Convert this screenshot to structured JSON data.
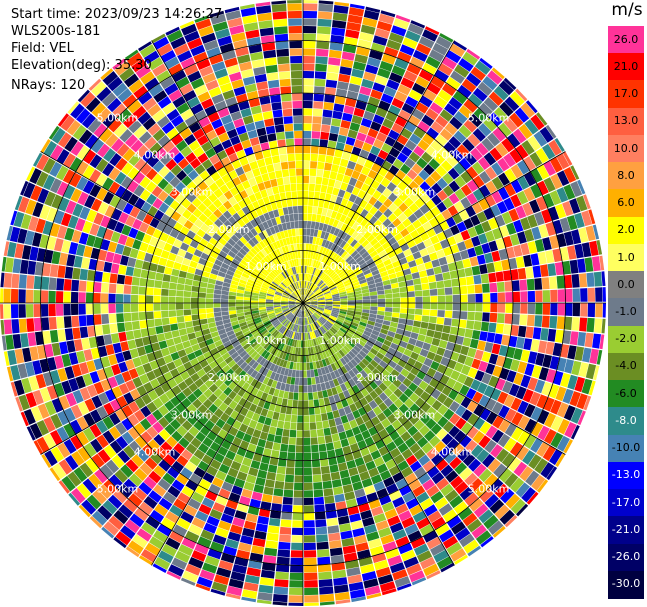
{
  "header": {
    "start_time": "Start time: 2023/09/23 14:26:27",
    "instrument": "WLS200s-181",
    "field": "Field: VEL",
    "elevation": "Elevation(deg): 35.30",
    "nrays": "NRays: 120"
  },
  "colorbar": {
    "unit": "m/s",
    "levels": [
      {
        "label": "26.0",
        "color": "#ff3399",
        "text": "#000000"
      },
      {
        "label": "21.0",
        "color": "#ff0000",
        "text": "#000000"
      },
      {
        "label": "17.0",
        "color": "#ff3300",
        "text": "#000000"
      },
      {
        "label": "13.0",
        "color": "#ff5f40",
        "text": "#000000"
      },
      {
        "label": "10.0",
        "color": "#ff7f60",
        "text": "#000000"
      },
      {
        "label": "8.0",
        "color": "#ffa040",
        "text": "#000000"
      },
      {
        "label": "6.0",
        "color": "#ffb000",
        "text": "#000000"
      },
      {
        "label": "2.0",
        "color": "#ffff00",
        "text": "#000000"
      },
      {
        "label": "1.0",
        "color": "#ffff60",
        "text": "#000000"
      },
      {
        "label": "0.0",
        "color": "#808080",
        "text": "#000000"
      },
      {
        "label": "-1.0",
        "color": "#6e7b8b",
        "text": "#000000"
      },
      {
        "label": "-2.0",
        "color": "#9acd32",
        "text": "#000000"
      },
      {
        "label": "-4.0",
        "color": "#6b8e23",
        "text": "#000000"
      },
      {
        "label": "-6.0",
        "color": "#228b22",
        "text": "#000000"
      },
      {
        "label": "-8.0",
        "color": "#2e8b8b",
        "text": "#ffffff"
      },
      {
        "label": "-10.0",
        "color": "#4682b4",
        "text": "#000000"
      },
      {
        "label": "-13.0",
        "color": "#0000ff",
        "text": "#ffffff"
      },
      {
        "label": "-17.0",
        "color": "#0000cd",
        "text": "#ffffff"
      },
      {
        "label": "-21.0",
        "color": "#00008b",
        "text": "#ffffff"
      },
      {
        "label": "-26.0",
        "color": "#000066",
        "text": "#ffffff"
      },
      {
        "label": "-30.0",
        "color": "#000040",
        "text": "#ffffff"
      }
    ]
  },
  "range_rings": {
    "labels": [
      "1.00km",
      "2.00km",
      "3.00km",
      "4.00km",
      "5.00km"
    ]
  },
  "colors": {
    "ring_line": "#000000",
    "label_text": "#ffffff",
    "background": "#ffffff"
  }
}
